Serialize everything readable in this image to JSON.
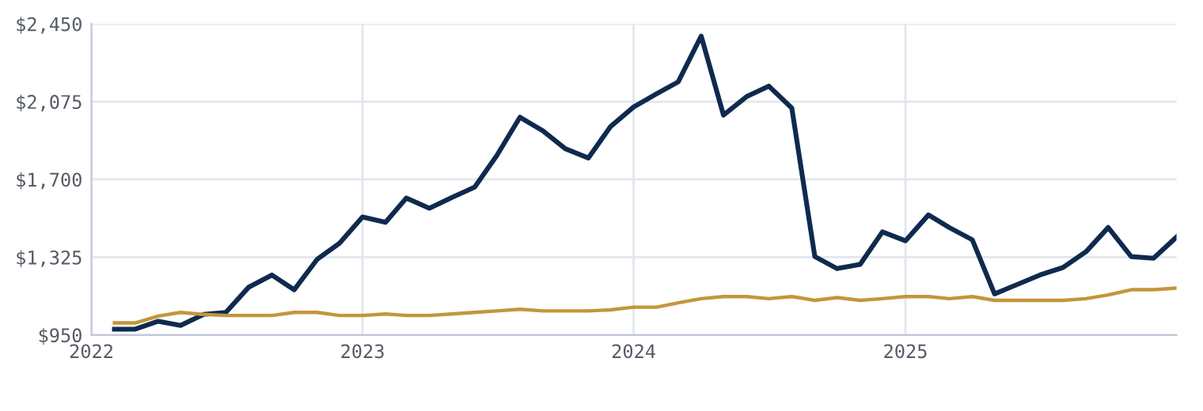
{
  "chart_data": {
    "type": "line",
    "x": [
      "2022-02",
      "2022-03",
      "2022-04",
      "2022-05",
      "2022-06",
      "2022-07",
      "2022-08",
      "2022-09",
      "2022-10",
      "2022-11",
      "2022-12",
      "2023-01",
      "2023-02",
      "2023-03",
      "2023-04",
      "2023-05",
      "2023-06",
      "2023-07",
      "2023-08",
      "2023-09",
      "2023-10",
      "2023-11",
      "2023-12",
      "2024-01",
      "2024-02",
      "2024-03",
      "2024-04",
      "2024-05",
      "2024-06",
      "2024-07",
      "2024-08",
      "2024-09",
      "2024-10",
      "2024-11",
      "2024-12",
      "2025-01",
      "2025-02",
      "2025-03",
      "2025-04",
      "2025-05",
      "2025-06",
      "2025-07",
      "2025-08",
      "2025-09",
      "2025-10",
      "2025-11",
      "2025-12",
      "2026-01"
    ],
    "series": [
      {
        "color": "#0f2a4f",
        "values": [
          978,
          978,
          1016,
          996,
          1049,
          1059,
          1181,
          1239,
          1168,
          1315,
          1392,
          1519,
          1493,
          1610,
          1561,
          1612,
          1663,
          1816,
          2000,
          1934,
          1848,
          1803,
          1955,
          2049,
          2113,
          2170,
          2391,
          2010,
          2099,
          2150,
          2044,
          1328,
          1270,
          1290,
          1447,
          1404,
          1529,
          1468,
          1409,
          1148,
          1194,
          1239,
          1275,
          1351,
          1468,
          1328,
          1320,
          1422
        ]
      },
      {
        "color": "#c4963a",
        "values": [
          1008,
          1008,
          1041,
          1059,
          1049,
          1044,
          1044,
          1044,
          1059,
          1059,
          1044,
          1044,
          1051,
          1044,
          1044,
          1051,
          1059,
          1066,
          1074,
          1066,
          1066,
          1066,
          1071,
          1084,
          1084,
          1105,
          1125,
          1135,
          1135,
          1125,
          1135,
          1117,
          1130,
          1117,
          1125,
          1135,
          1135,
          1125,
          1135,
          1117,
          1117,
          1117,
          1117,
          1125,
          1143,
          1168,
          1168,
          1176
        ]
      }
    ],
    "xlim": [
      "2022-01",
      "2026-01"
    ],
    "xticks": [
      {
        "value": "2022-01",
        "label": "2022"
      },
      {
        "value": "2023-01",
        "label": "2023"
      },
      {
        "value": "2024-01",
        "label": "2024"
      },
      {
        "value": "2025-01",
        "label": "2025"
      }
    ],
    "ylim": [
      950,
      2450
    ],
    "yticks": [
      {
        "value": 950,
        "label": "$950"
      },
      {
        "value": 1325,
        "label": "$1,325"
      },
      {
        "value": 1700,
        "label": "$1,700"
      },
      {
        "value": 2075,
        "label": "$2,075"
      },
      {
        "value": 2450,
        "label": "$2,450"
      }
    ],
    "grid": true
  }
}
